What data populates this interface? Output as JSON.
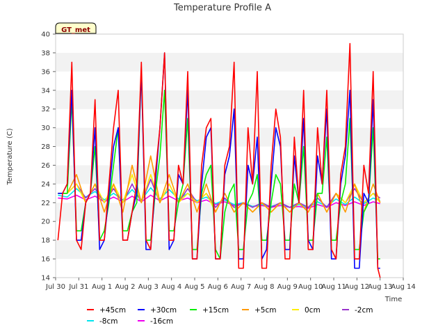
{
  "chart_data": {
    "type": "line",
    "title": "Temperature Profile A",
    "xlabel": "Time",
    "ylabel": "Temperature (C)",
    "badge": "GT_met",
    "ylim": [
      14,
      40
    ],
    "yticks": [
      14,
      16,
      18,
      20,
      22,
      24,
      26,
      28,
      30,
      32,
      34,
      36,
      38,
      40
    ],
    "xlim": [
      0,
      15
    ],
    "xticks": [
      {
        "x": 0,
        "label": "Jul 30"
      },
      {
        "x": 1,
        "label": "Jul 31"
      },
      {
        "x": 2,
        "label": "Aug 1"
      },
      {
        "x": 3,
        "label": "Aug 2"
      },
      {
        "x": 4,
        "label": "Aug 3"
      },
      {
        "x": 5,
        "label": "Aug 4"
      },
      {
        "x": 6,
        "label": "Aug 5"
      },
      {
        "x": 7,
        "label": "Aug 6"
      },
      {
        "x": 8,
        "label": "Aug 7"
      },
      {
        "x": 9,
        "label": "Aug 8"
      },
      {
        "x": 10,
        "label": "Aug 9"
      },
      {
        "x": 11,
        "label": "Aug 10"
      },
      {
        "x": 12,
        "label": "Aug 11"
      },
      {
        "x": 13,
        "label": "Aug 12"
      },
      {
        "x": 14,
        "label": "Aug 13"
      },
      {
        "x": 15,
        "label": "Aug 14"
      }
    ],
    "grid": "horizontal bands",
    "legend_position": "bottom",
    "series": [
      {
        "name": "+45cm",
        "color": "#ff0000",
        "x": [
          0.1,
          0.3,
          0.5,
          0.7,
          0.9,
          1.1,
          1.3,
          1.5,
          1.7,
          1.9,
          2.1,
          2.3,
          2.5,
          2.7,
          2.9,
          3.1,
          3.3,
          3.5,
          3.7,
          3.9,
          4.1,
          4.3,
          4.5,
          4.7,
          4.9,
          5.1,
          5.3,
          5.5,
          5.7,
          5.9,
          6.1,
          6.3,
          6.5,
          6.7,
          6.9,
          7.1,
          7.3,
          7.5,
          7.7,
          7.9,
          8.1,
          8.3,
          8.5,
          8.7,
          8.9,
          9.1,
          9.3,
          9.5,
          9.7,
          9.9,
          10.1,
          10.3,
          10.5,
          10.7,
          10.9,
          11.1,
          11.3,
          11.5,
          11.7,
          11.9,
          12.1,
          12.3,
          12.5,
          12.7,
          12.9,
          13.1,
          13.3,
          13.5,
          13.7,
          13.9,
          14.0
        ],
        "y": [
          18,
          23,
          24,
          37,
          18,
          17,
          22,
          23,
          33,
          18,
          18,
          24,
          30,
          34,
          18,
          18,
          21,
          24,
          37,
          18,
          17,
          25,
          30,
          38,
          18,
          18,
          26,
          24,
          36,
          16,
          16,
          26,
          30,
          31,
          16,
          16,
          26,
          28,
          37,
          15,
          15,
          30,
          24,
          36,
          15,
          15,
          26,
          32,
          29,
          16,
          16,
          29,
          22,
          34,
          17,
          17,
          30,
          24,
          34,
          17,
          16,
          25,
          28,
          39,
          16,
          16,
          26,
          23,
          36,
          15,
          14
        ]
      },
      {
        "name": "+30cm",
        "color": "#0000ff",
        "x": [
          0.1,
          0.3,
          0.5,
          0.7,
          0.9,
          1.1,
          1.3,
          1.5,
          1.7,
          1.9,
          2.1,
          2.3,
          2.5,
          2.7,
          2.9,
          3.1,
          3.3,
          3.5,
          3.7,
          3.9,
          4.1,
          4.3,
          4.5,
          4.7,
          4.9,
          5.1,
          5.3,
          5.5,
          5.7,
          5.9,
          6.1,
          6.3,
          6.5,
          6.7,
          6.9,
          7.1,
          7.3,
          7.5,
          7.7,
          7.9,
          8.1,
          8.3,
          8.5,
          8.7,
          8.9,
          9.1,
          9.3,
          9.5,
          9.7,
          9.9,
          10.1,
          10.3,
          10.5,
          10.7,
          10.9,
          11.1,
          11.3,
          11.5,
          11.7,
          11.9,
          12.1,
          12.3,
          12.5,
          12.7,
          12.9,
          13.1,
          13.3,
          13.5,
          13.7,
          13.9,
          14.0
        ],
        "y": [
          23,
          23,
          24,
          34,
          18,
          18,
          22,
          23,
          30,
          17,
          18,
          23,
          28,
          30,
          18,
          18,
          21,
          23,
          36,
          17,
          17,
          24,
          30,
          38,
          17,
          18,
          25,
          24,
          34,
          16,
          16,
          24,
          29,
          30,
          16,
          16,
          25,
          27,
          32,
          16,
          16,
          26,
          24,
          29,
          16,
          17,
          24,
          30,
          28,
          17,
          17,
          27,
          22,
          31,
          18,
          17,
          27,
          24,
          32,
          16,
          16,
          24,
          27,
          34,
          15,
          15,
          23,
          22,
          33,
          15,
          15
        ]
      },
      {
        "name": "+15cm",
        "color": "#00ee00",
        "x": [
          0.1,
          0.3,
          0.5,
          0.7,
          0.9,
          1.1,
          1.3,
          1.5,
          1.7,
          1.9,
          2.1,
          2.3,
          2.5,
          2.7,
          2.9,
          3.1,
          3.3,
          3.5,
          3.7,
          3.9,
          4.1,
          4.3,
          4.5,
          4.7,
          4.9,
          5.1,
          5.3,
          5.5,
          5.7,
          5.9,
          6.1,
          6.3,
          6.5,
          6.7,
          6.9,
          7.1,
          7.3,
          7.5,
          7.7,
          7.9,
          8.1,
          8.3,
          8.5,
          8.7,
          8.9,
          9.1,
          9.3,
          9.5,
          9.7,
          9.9,
          10.1,
          10.3,
          10.5,
          10.7,
          10.9,
          11.1,
          11.3,
          11.5,
          11.7,
          11.9,
          12.1,
          12.3,
          12.5,
          12.7,
          12.9,
          13.1,
          13.3,
          13.5,
          13.7,
          13.9,
          14.0
        ],
        "y": [
          23,
          23,
          23,
          33,
          19,
          19,
          22,
          23,
          28,
          18,
          19,
          22,
          26,
          30,
          19,
          19,
          21,
          22,
          36,
          18,
          18,
          23,
          27,
          34,
          19,
          19,
          22,
          24,
          31,
          17,
          17,
          23,
          25,
          26,
          17,
          16,
          21,
          23,
          24,
          17,
          17,
          22,
          23,
          25,
          18,
          18,
          22,
          25,
          24,
          18,
          18,
          24,
          22,
          28,
          18,
          18,
          23,
          23,
          29,
          18,
          18,
          22,
          24,
          31,
          17,
          17,
          21,
          22,
          30,
          16,
          16
        ]
      },
      {
        "name": "+5cm",
        "color": "#ff9900",
        "x": [
          0.1,
          0.5,
          0.9,
          1.3,
          1.7,
          2.1,
          2.5,
          2.9,
          3.3,
          3.7,
          4.1,
          4.5,
          4.9,
          5.3,
          5.7,
          6.1,
          6.5,
          6.9,
          7.3,
          7.7,
          8.1,
          8.5,
          8.9,
          9.3,
          9.7,
          10.1,
          10.5,
          10.9,
          11.3,
          11.7,
          12.1,
          12.5,
          12.9,
          13.3,
          13.7,
          14.0
        ],
        "y": [
          23,
          23,
          25,
          22,
          24,
          21,
          24,
          21,
          26,
          22,
          27,
          22,
          25,
          22,
          24,
          21,
          24,
          21,
          23,
          21,
          22,
          21,
          22,
          21,
          22,
          21,
          22,
          21,
          23,
          21,
          23,
          21,
          24,
          21,
          24,
          22
        ]
      },
      {
        "name": "0cm",
        "color": "#ffee00",
        "x": [
          0.1,
          0.5,
          0.9,
          1.3,
          1.7,
          2.1,
          2.5,
          2.9,
          3.3,
          3.7,
          4.1,
          4.5,
          4.9,
          5.3,
          5.7,
          6.1,
          6.5,
          6.9,
          7.3,
          7.7,
          8.1,
          8.5,
          8.9,
          9.3,
          9.7,
          10.1,
          10.5,
          10.9,
          11.3,
          11.7,
          12.1,
          12.5,
          12.9,
          13.3,
          13.7,
          14.0
        ],
        "y": [
          23,
          23,
          24,
          22,
          24,
          22,
          24,
          22,
          25,
          22,
          25,
          22,
          24,
          22,
          23,
          22,
          23,
          21,
          23,
          21,
          22,
          21,
          22,
          21,
          22,
          21,
          22,
          21,
          23,
          21,
          23,
          22,
          24,
          22,
          23,
          22
        ]
      },
      {
        "name": "-2cm",
        "color": "#9933cc",
        "x": [
          0.1,
          0.5,
          0.9,
          1.3,
          1.7,
          2.1,
          2.5,
          2.9,
          3.3,
          3.7,
          4.1,
          4.5,
          4.9,
          5.3,
          5.7,
          6.1,
          6.5,
          6.9,
          7.3,
          7.7,
          8.1,
          8.5,
          8.9,
          9.3,
          9.7,
          10.1,
          10.5,
          10.9,
          11.3,
          11.7,
          12.1,
          12.5,
          12.9,
          13.3,
          13.7,
          14.0
        ],
        "y": [
          23,
          23,
          24,
          22.5,
          23.5,
          22,
          23.5,
          22,
          24,
          22,
          24.5,
          22,
          24,
          22,
          23.5,
          22,
          23,
          21.5,
          22.5,
          21.5,
          22,
          21.5,
          22,
          21.5,
          22,
          21.5,
          22,
          21.5,
          22.5,
          21.5,
          23,
          22,
          23.5,
          22,
          23,
          22.5
        ]
      },
      {
        "name": "-8cm",
        "color": "#00e5ee",
        "x": [
          0.1,
          0.5,
          0.9,
          1.3,
          1.7,
          2.1,
          2.5,
          2.9,
          3.3,
          3.7,
          4.1,
          4.5,
          4.9,
          5.3,
          5.7,
          6.1,
          6.5,
          6.9,
          7.3,
          7.7,
          8.1,
          8.5,
          8.9,
          9.3,
          9.7,
          10.1,
          10.5,
          10.9,
          11.3,
          11.7,
          12.1,
          12.5,
          12.9,
          13.3,
          13.7,
          14.0
        ],
        "y": [
          22.8,
          22.6,
          23.5,
          22.6,
          23.2,
          22.3,
          23,
          22.3,
          23.4,
          22.3,
          23.6,
          22.4,
          23.4,
          22.4,
          23,
          22.2,
          22.6,
          21.9,
          22.3,
          21.8,
          22,
          21.6,
          21.8,
          21.6,
          21.9,
          21.5,
          21.8,
          21.5,
          22.1,
          21.6,
          22.4,
          21.8,
          22.6,
          21.9,
          22.5,
          22.2
        ]
      },
      {
        "name": "-16cm",
        "color": "#ee00ee",
        "x": [
          0.1,
          0.5,
          0.9,
          1.3,
          1.7,
          2.1,
          2.5,
          2.9,
          3.3,
          3.7,
          4.1,
          4.5,
          4.9,
          5.3,
          5.7,
          6.1,
          6.5,
          6.9,
          7.3,
          7.7,
          8.1,
          8.5,
          8.9,
          9.3,
          9.7,
          10.1,
          10.5,
          10.9,
          11.3,
          11.7,
          12.1,
          12.5,
          12.9,
          13.3,
          13.7,
          14.0
        ],
        "y": [
          22.5,
          22.4,
          22.8,
          22.3,
          22.7,
          22.1,
          22.6,
          22.1,
          22.7,
          22.1,
          22.8,
          22.2,
          22.7,
          22.2,
          22.5,
          22,
          22.3,
          21.8,
          22.1,
          21.7,
          21.9,
          21.6,
          21.7,
          21.5,
          21.7,
          21.5,
          21.6,
          21.4,
          21.8,
          21.5,
          22,
          21.7,
          22.1,
          21.7,
          22.1,
          21.9
        ]
      }
    ]
  }
}
